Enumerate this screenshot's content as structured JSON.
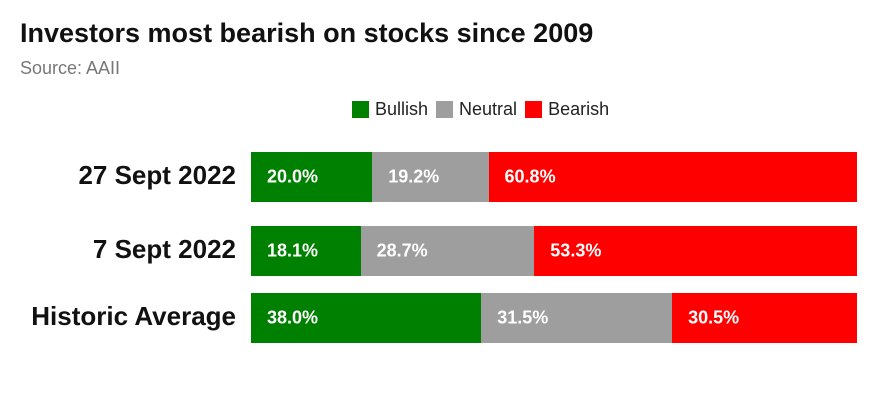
{
  "title": "Investors most bearish on stocks since 2009",
  "subtitle": "Source: AAII",
  "colors": {
    "Bullish": "#008000",
    "Neutral": "#9e9e9e",
    "Bearish": "#ff0000"
  },
  "chart_data": {
    "type": "bar",
    "orientation": "horizontal",
    "stacked": true,
    "normalized": true,
    "title": "Investors most bearish on stocks since 2009",
    "subtitle": "Source: AAII",
    "legend": "top",
    "grid": false,
    "categories": [
      "27 Sept 2022",
      "7 Sept 2022",
      "Historic Average"
    ],
    "series": [
      {
        "name": "Bullish",
        "values": [
          20.0,
          18.1,
          38.0
        ],
        "labels": [
          "20.0%",
          "18.1%",
          "38.0%"
        ]
      },
      {
        "name": "Neutral",
        "values": [
          19.2,
          28.7,
          31.5
        ],
        "labels": [
          "19.2%",
          "28.7%",
          "31.5%"
        ]
      },
      {
        "name": "Bearish",
        "values": [
          60.8,
          53.3,
          30.5
        ],
        "labels": [
          "60.8%",
          "53.3%",
          "30.5%"
        ]
      }
    ]
  }
}
